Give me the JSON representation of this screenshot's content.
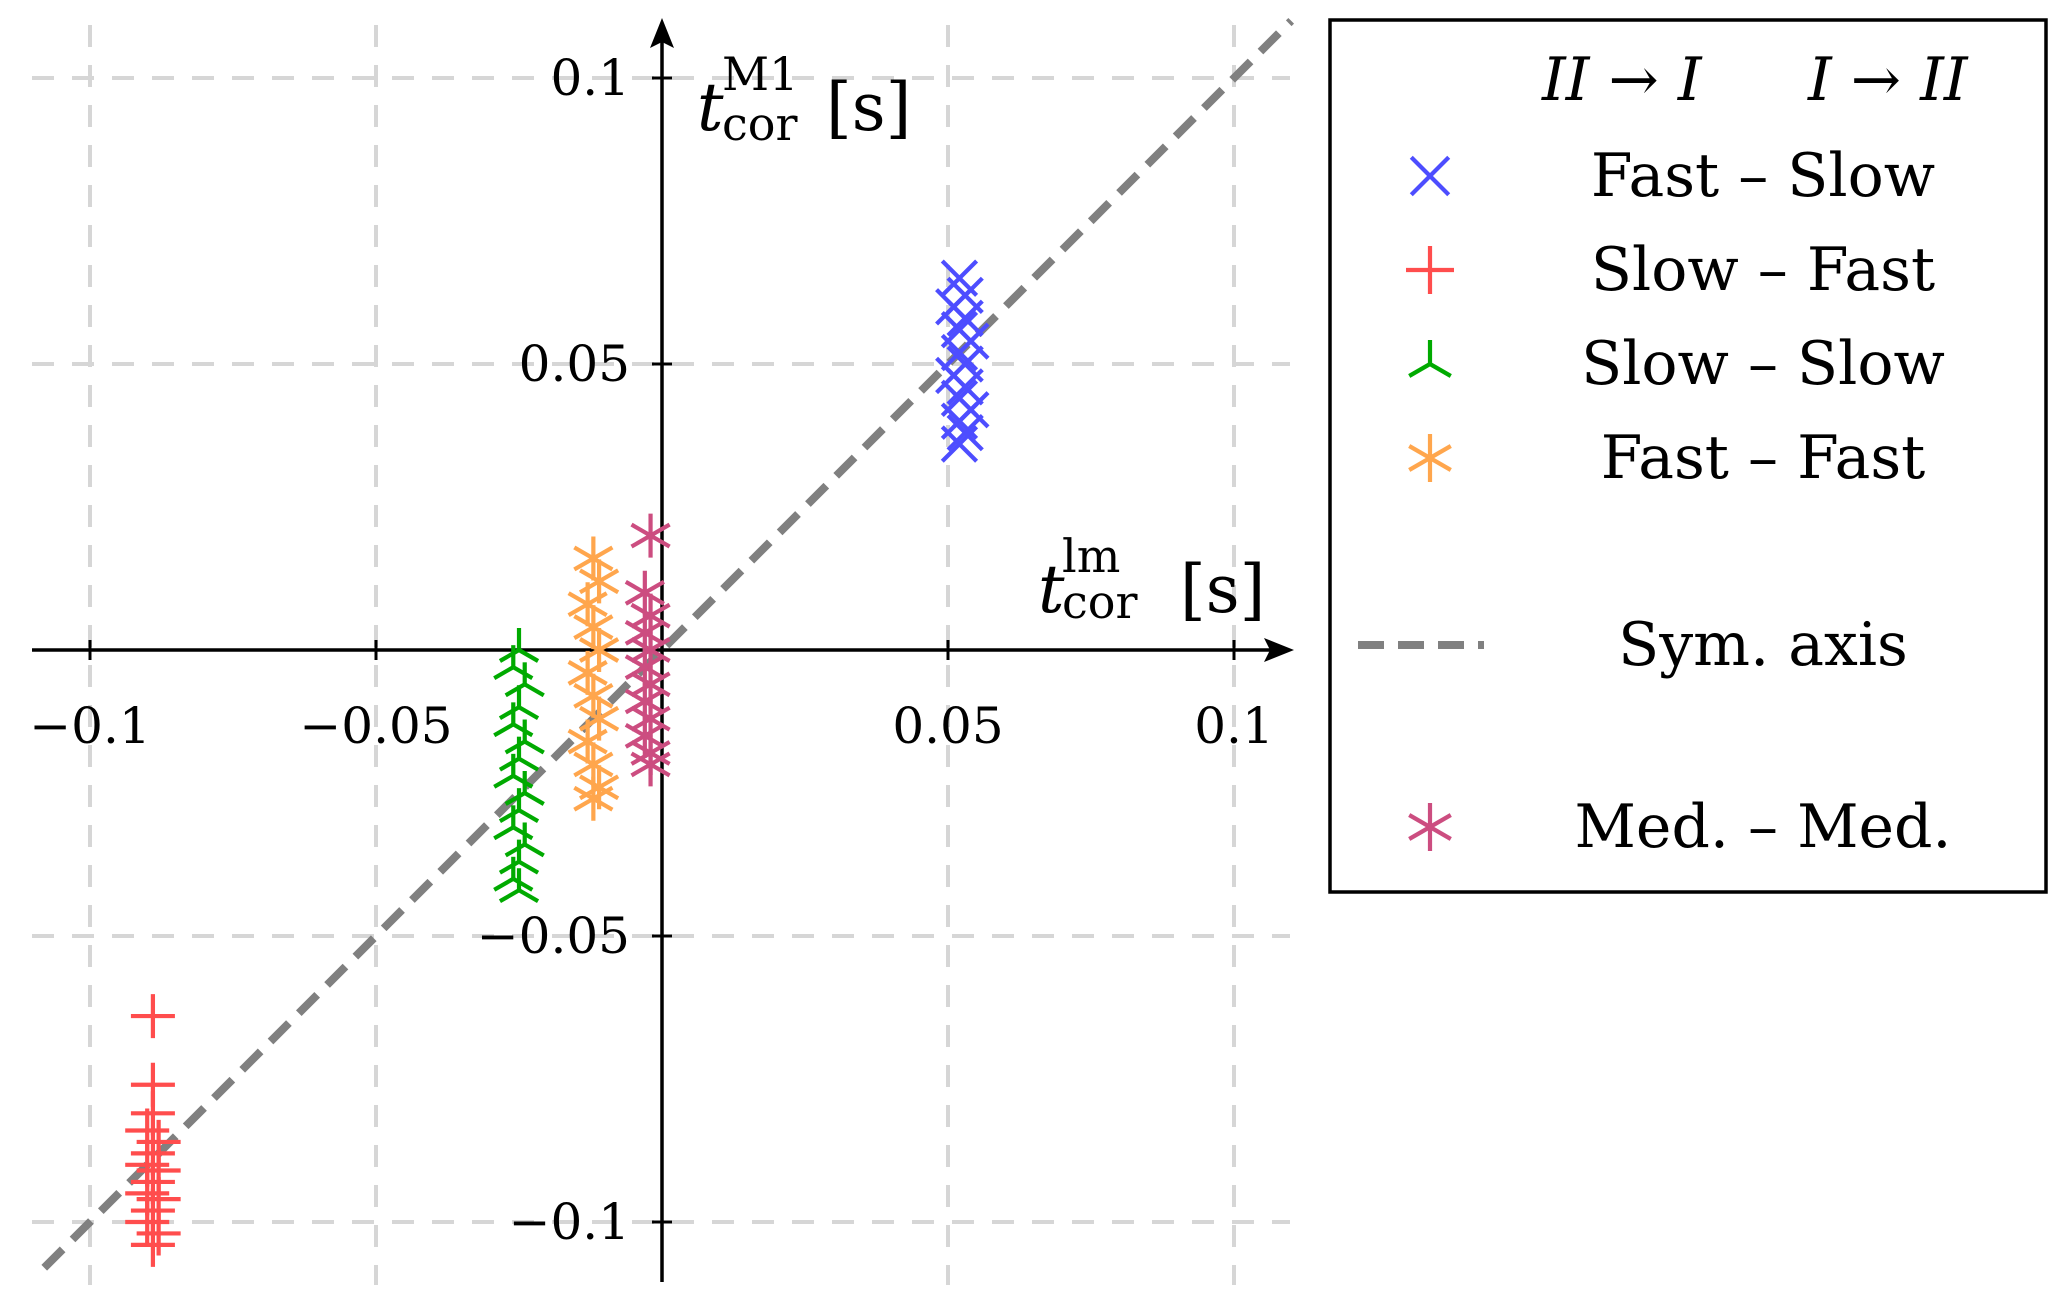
{
  "chart_data": {
    "type": "scatter",
    "title": "",
    "xlabel": {
      "main": "t",
      "sup": "lm",
      "sub": "cor",
      "unit": "[s]"
    },
    "ylabel": {
      "main": "t",
      "sup": "M1",
      "sub": "cor",
      "unit": "[s]"
    },
    "xlim": [
      -0.11,
      0.11
    ],
    "ylim": [
      -0.11,
      0.11
    ],
    "grid": true,
    "x_ticks": [
      -0.1,
      -0.05,
      0.05,
      0.1
    ],
    "y_ticks": [
      0.1,
      0.05,
      -0.05,
      -0.1
    ],
    "x_tick_labels": [
      "−0.1",
      "−0.05",
      "0.05",
      "0.1"
    ],
    "y_tick_labels": [
      "0.1",
      "0.05",
      "−0.05",
      "−0.1"
    ],
    "legend_position": "right",
    "legend_header": [
      "II → I",
      "I → II"
    ],
    "series": [
      {
        "name": "Fast – Slow",
        "marker": "x",
        "color": "#4d4dff",
        "points": [
          [
            0.052,
            0.065
          ],
          [
            0.053,
            0.062
          ],
          [
            0.051,
            0.06
          ],
          [
            0.053,
            0.058
          ],
          [
            0.052,
            0.056
          ],
          [
            0.054,
            0.054
          ],
          [
            0.052,
            0.052
          ],
          [
            0.053,
            0.05
          ],
          [
            0.051,
            0.048
          ],
          [
            0.053,
            0.046
          ],
          [
            0.052,
            0.044
          ],
          [
            0.054,
            0.042
          ],
          [
            0.052,
            0.04
          ],
          [
            0.053,
            0.038
          ],
          [
            0.052,
            0.036
          ]
        ]
      },
      {
        "name": "Slow – Fast",
        "marker": "+",
        "color": "#ff4d4d",
        "points": [
          [
            -0.089,
            -0.064
          ],
          [
            -0.089,
            -0.076
          ],
          [
            -0.089,
            -0.081
          ],
          [
            -0.09,
            -0.084
          ],
          [
            -0.088,
            -0.086
          ],
          [
            -0.089,
            -0.088
          ],
          [
            -0.09,
            -0.09
          ],
          [
            -0.088,
            -0.091
          ],
          [
            -0.089,
            -0.093
          ],
          [
            -0.09,
            -0.095
          ],
          [
            -0.088,
            -0.096
          ],
          [
            -0.089,
            -0.098
          ],
          [
            -0.09,
            -0.1
          ],
          [
            -0.088,
            -0.102
          ],
          [
            -0.089,
            -0.104
          ]
        ]
      },
      {
        "name": "Slow – Slow",
        "marker": "*3",
        "color": "#00aa00",
        "points": [
          [
            -0.025,
            0.0
          ],
          [
            -0.026,
            -0.003
          ],
          [
            -0.024,
            -0.006
          ],
          [
            -0.025,
            -0.01
          ],
          [
            -0.026,
            -0.013
          ],
          [
            -0.024,
            -0.016
          ],
          [
            -0.025,
            -0.019
          ],
          [
            -0.026,
            -0.022
          ],
          [
            -0.024,
            -0.025
          ],
          [
            -0.025,
            -0.028
          ],
          [
            -0.026,
            -0.031
          ],
          [
            -0.024,
            -0.034
          ],
          [
            -0.025,
            -0.037
          ],
          [
            -0.026,
            -0.04
          ],
          [
            -0.025,
            -0.042
          ]
        ]
      },
      {
        "name": "Fast – Fast",
        "marker": "*",
        "color": "#ffa64d",
        "points": [
          [
            -0.012,
            0.016
          ],
          [
            -0.011,
            0.012
          ],
          [
            -0.013,
            0.008
          ],
          [
            -0.012,
            0.004
          ],
          [
            -0.011,
            0.0
          ],
          [
            -0.013,
            -0.004
          ],
          [
            -0.012,
            -0.008
          ],
          [
            -0.011,
            -0.012
          ],
          [
            -0.013,
            -0.016
          ],
          [
            -0.012,
            -0.02
          ],
          [
            -0.011,
            -0.024
          ],
          [
            -0.012,
            -0.026
          ]
        ]
      },
      {
        "name": "Sym. axis",
        "marker": "dashed-line",
        "color": "#808080",
        "line": [
          [
            -0.108,
            -0.108
          ],
          [
            0.11,
            0.11
          ]
        ]
      },
      {
        "name": "Med. – Med.",
        "marker": "*",
        "color": "#cc4d80",
        "points": [
          [
            -0.002,
            0.02
          ],
          [
            -0.003,
            0.01
          ],
          [
            -0.002,
            0.006
          ],
          [
            -0.003,
            0.003
          ],
          [
            -0.002,
            0.0
          ],
          [
            -0.003,
            -0.003
          ],
          [
            -0.002,
            -0.006
          ],
          [
            -0.003,
            -0.009
          ],
          [
            -0.002,
            -0.012
          ],
          [
            -0.003,
            -0.015
          ],
          [
            -0.002,
            -0.018
          ],
          [
            -0.002,
            -0.02
          ]
        ]
      }
    ]
  }
}
